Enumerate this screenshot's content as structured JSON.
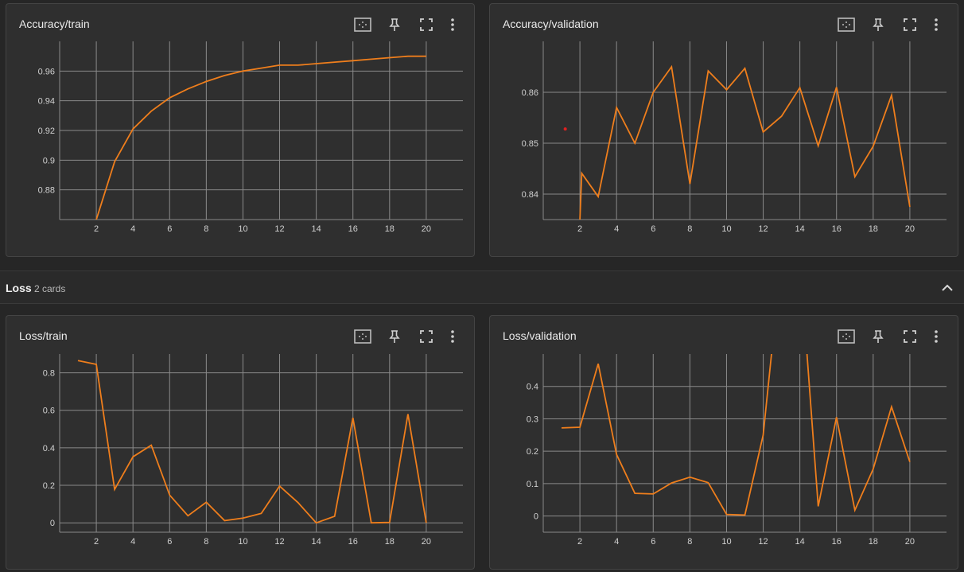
{
  "section": {
    "title": "Loss",
    "count": "2 cards"
  },
  "colors": {
    "line": "#ef7e1c",
    "grid": "#8a8a8a",
    "tick": "#d0d0d0",
    "marker": "#e02020"
  },
  "icons": [
    "fit-domain-icon",
    "pin-icon",
    "fullscreen-icon",
    "more-vert-icon"
  ],
  "cards": [
    {
      "title": "Accuracy/train"
    },
    {
      "title": "Accuracy/validation"
    },
    {
      "title": "Loss/train"
    },
    {
      "title": "Loss/validation"
    }
  ],
  "chart_data": [
    {
      "type": "line",
      "title": "Accuracy/train",
      "xlim": [
        0,
        22
      ],
      "ylim": [
        0.86,
        0.98
      ],
      "xticks": [
        2,
        4,
        6,
        8,
        10,
        12,
        14,
        16,
        18,
        20
      ],
      "yticks": [
        0.88,
        0.9,
        0.92,
        0.94,
        0.96
      ],
      "ytick_labels": [
        "0.88",
        "0.9",
        "0.92",
        "0.94",
        "0.96"
      ],
      "x": [
        2,
        3,
        4,
        5,
        6,
        7,
        8,
        9,
        10,
        11,
        12,
        13,
        14,
        15,
        16,
        17,
        18,
        19,
        20
      ],
      "y": [
        0.86,
        0.899,
        0.921,
        0.933,
        0.942,
        0.948,
        0.953,
        0.957,
        0.96,
        0.962,
        0.964,
        0.964,
        0.965,
        0.966,
        0.967,
        0.968,
        0.969,
        0.97,
        0.97
      ]
    },
    {
      "type": "line",
      "title": "Accuracy/validation",
      "xlim": [
        0,
        22
      ],
      "ylim": [
        0.835,
        0.87
      ],
      "xticks": [
        2,
        4,
        6,
        8,
        10,
        12,
        14,
        16,
        18,
        20
      ],
      "yticks": [
        0.84,
        0.85,
        0.86
      ],
      "ytick_labels": [
        "0.84",
        "0.85",
        "0.86"
      ],
      "marker": {
        "x": 1.2,
        "y": 0.8528
      },
      "x": [
        2,
        2.1,
        3,
        4,
        5,
        6,
        7,
        8,
        9,
        10,
        11,
        12,
        13,
        14,
        15,
        16,
        17,
        18,
        19,
        20
      ],
      "y": [
        0.835,
        0.8441,
        0.8395,
        0.857,
        0.85,
        0.86,
        0.865,
        0.842,
        0.8642,
        0.8605,
        0.8647,
        0.8522,
        0.8553,
        0.8609,
        0.8495,
        0.861,
        0.8434,
        0.8494,
        0.8594,
        0.8375
      ]
    },
    {
      "type": "line",
      "title": "Loss/train",
      "xlim": [
        0,
        22
      ],
      "ylim": [
        -0.05,
        0.9
      ],
      "xticks": [
        2,
        4,
        6,
        8,
        10,
        12,
        14,
        16,
        18,
        20
      ],
      "yticks": [
        0,
        0.2,
        0.4,
        0.6,
        0.8
      ],
      "ytick_labels": [
        "0",
        "0.2",
        "0.4",
        "0.6",
        "0.8"
      ],
      "x": [
        1,
        2,
        3,
        4,
        5,
        6,
        7,
        8,
        9,
        10,
        11,
        12,
        13,
        14,
        15,
        16,
        17,
        18,
        19,
        20
      ],
      "y": [
        0.865,
        0.845,
        0.178,
        0.352,
        0.414,
        0.148,
        0.038,
        0.11,
        0.012,
        0.025,
        0.05,
        0.196,
        0.108,
        0.0,
        0.035,
        0.56,
        0.0,
        0.002,
        0.58,
        0.0
      ]
    },
    {
      "type": "line",
      "title": "Loss/validation",
      "xlim": [
        0,
        22
      ],
      "ylim": [
        -0.05,
        0.5
      ],
      "xticks": [
        2,
        4,
        6,
        8,
        10,
        12,
        14,
        16,
        18,
        20
      ],
      "yticks": [
        0,
        0.1,
        0.2,
        0.3,
        0.4
      ],
      "ytick_labels": [
        "0",
        "0.1",
        "0.2",
        "0.3",
        "0.4"
      ],
      "x": [
        1,
        2,
        3,
        4,
        5,
        6,
        7,
        8,
        9,
        10,
        11,
        12,
        13,
        14,
        15,
        16,
        17,
        18,
        19,
        20
      ],
      "y": [
        0.272,
        0.274,
        0.47,
        0.19,
        0.07,
        0.068,
        0.102,
        0.12,
        0.103,
        0.005,
        0.003,
        0.25,
        0.8,
        0.8,
        0.03,
        0.305,
        0.018,
        0.145,
        0.337,
        0.167
      ]
    }
  ]
}
